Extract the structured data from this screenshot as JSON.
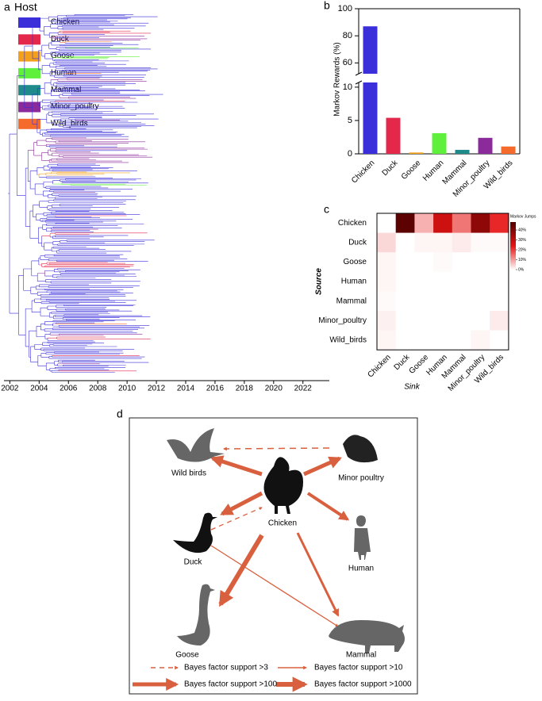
{
  "chart_data": [
    {
      "type": "tree",
      "label": "a",
      "legend": {
        "title": "Host",
        "entries": [
          {
            "name": "Chicken",
            "color": "#3b2fd9"
          },
          {
            "name": "Duck",
            "color": "#e3284b"
          },
          {
            "name": "Goose",
            "color": "#f3a11d"
          },
          {
            "name": "Human",
            "color": "#5ff03b"
          },
          {
            "name": "Mammal",
            "color": "#1f8b8b"
          },
          {
            "name": "Minor_poultry",
            "color": "#8b2b9b"
          },
          {
            "name": "Wild_birds",
            "color": "#f56b2b"
          }
        ]
      },
      "xlim": [
        2001.6,
        2023.8
      ],
      "xticks": [
        2002,
        2004,
        2006,
        2008,
        2010,
        2012,
        2014,
        2016,
        2018,
        2020,
        2022
      ]
    },
    {
      "type": "bar",
      "label": "b",
      "ylabel": "Markov Rewards (%)",
      "categories": [
        "Chicken",
        "Duck",
        "Goose",
        "Human",
        "Mammal",
        "Minor_poultry",
        "Wild_birds"
      ],
      "values": [
        87,
        5.4,
        0.2,
        3.1,
        0.6,
        2.4,
        1.1
      ],
      "colors": [
        "#3b2fd9",
        "#e3284b",
        "#f3a11d",
        "#5ff03b",
        "#1f8b8b",
        "#8b2b9b",
        "#f56b2b"
      ],
      "segments": [
        {
          "ylim": [
            0,
            10.7
          ],
          "yticks": [
            0,
            5,
            10
          ]
        },
        {
          "ylim": [
            52,
            100
          ],
          "yticks": [
            60,
            80,
            100
          ]
        }
      ]
    },
    {
      "type": "heatmap",
      "label": "c",
      "ylabel": "Source",
      "xlabel": "Sink",
      "rows": [
        "Chicken",
        "Duck",
        "Goose",
        "Human",
        "Mammal",
        "Minor_poultry",
        "Wild_birds"
      ],
      "columns": [
        "Chicken",
        "Duck",
        "Goose",
        "Human",
        "Mammal",
        "Minor_poultry",
        "Wild_birds"
      ],
      "values": [
        [
          0,
          46,
          8,
          28,
          14,
          38,
          22
        ],
        [
          4,
          0,
          1,
          1,
          2,
          0.5,
          0.5
        ],
        [
          1,
          0,
          0,
          0.5,
          0,
          0,
          0
        ],
        [
          1,
          0,
          0,
          0,
          0,
          0,
          0
        ],
        [
          0.5,
          0,
          0,
          0,
          0,
          0,
          0
        ],
        [
          1.5,
          0,
          0,
          0,
          0,
          0,
          2
        ],
        [
          1,
          0,
          0,
          0,
          0,
          1,
          0
        ]
      ],
      "colorbar": {
        "title": "Markov Jumps",
        "clim": [
          0,
          48
        ],
        "ticks": [
          {
            "value": 0,
            "label": "0%"
          },
          {
            "value": 10,
            "label": "10%"
          },
          {
            "value": 20,
            "label": "20%"
          },
          {
            "value": 30,
            "label": "30%"
          },
          {
            "value": 40,
            "label": "40%"
          }
        ]
      }
    }
  ],
  "diagram": {
    "label": "d",
    "nodes": [
      "Wild birds",
      "Minor poultry",
      "Chicken",
      "Duck",
      "Human",
      "Goose",
      "Mammal"
    ],
    "legend": [
      "Bayes factor support >3",
      "Bayes factor support >10",
      "Bayes factor support >100",
      "Bayes factor support >1000"
    ]
  }
}
